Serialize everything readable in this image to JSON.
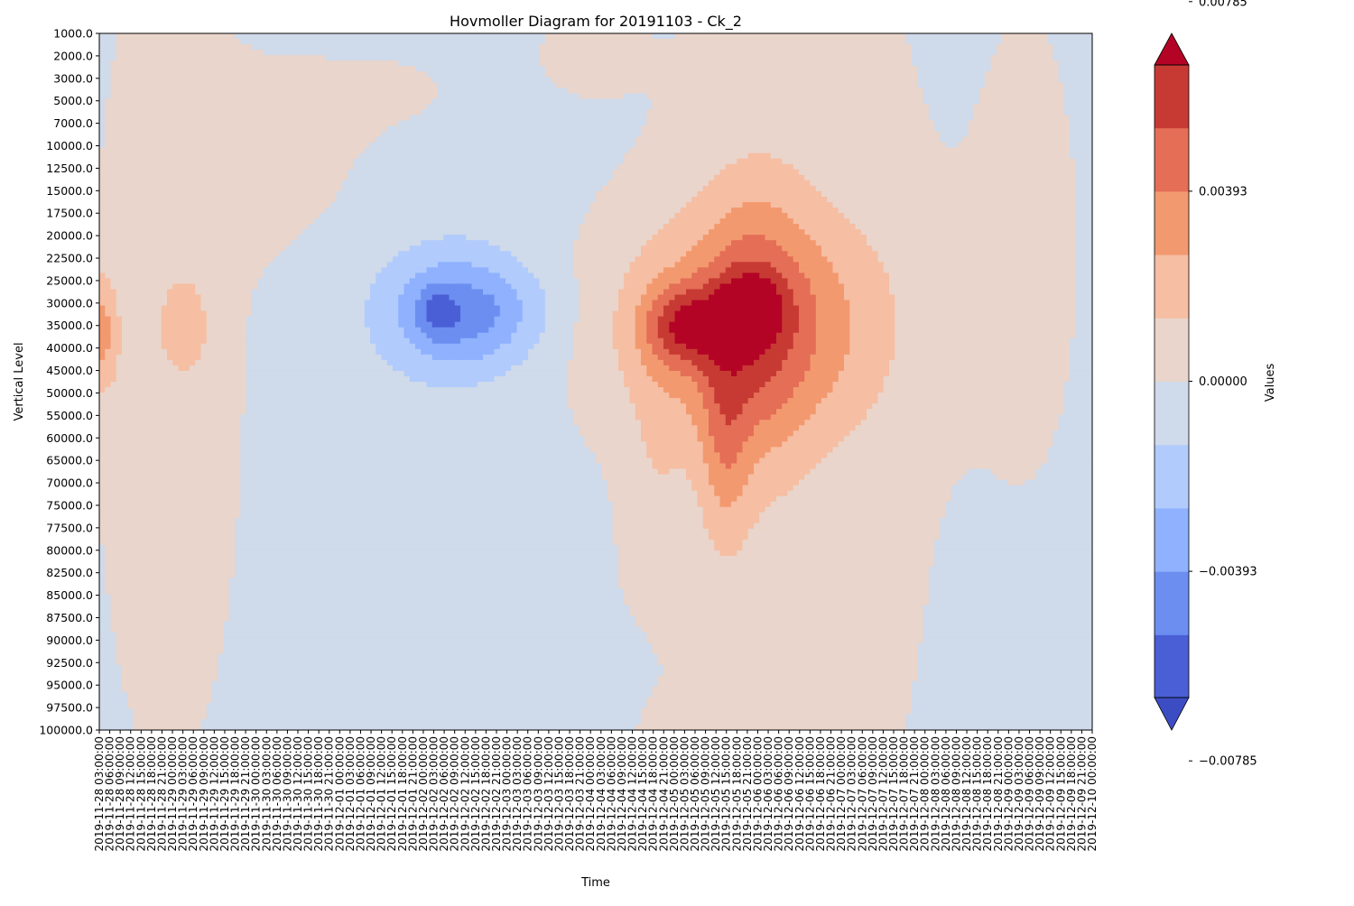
{
  "chart_data": {
    "type": "heatmap",
    "subtype": "filled-contour",
    "title": "Hovmoller Diagram for 20191103 - Ck_2",
    "xlabel": "Time",
    "ylabel": "Vertical Level",
    "y_inverted": true,
    "x_ticks": [
      "2019-11-28 03:00:00",
      "2019-11-28 06:00:00",
      "2019-11-28 09:00:00",
      "2019-11-28 12:00:00",
      "2019-11-28 15:00:00",
      "2019-11-28 18:00:00",
      "2019-11-28 21:00:00",
      "2019-11-29 00:00:00",
      "2019-11-29 03:00:00",
      "2019-11-29 06:00:00",
      "2019-11-29 09:00:00",
      "2019-11-29 12:00:00",
      "2019-11-29 15:00:00",
      "2019-11-29 18:00:00",
      "2019-11-29 21:00:00",
      "2019-11-30 00:00:00",
      "2019-11-30 03:00:00",
      "2019-11-30 06:00:00",
      "2019-11-30 09:00:00",
      "2019-11-30 12:00:00",
      "2019-11-30 15:00:00",
      "2019-11-30 18:00:00",
      "2019-11-30 21:00:00",
      "2019-12-01 00:00:00",
      "2019-12-01 03:00:00",
      "2019-12-01 06:00:00",
      "2019-12-01 09:00:00",
      "2019-12-01 12:00:00",
      "2019-12-01 15:00:00",
      "2019-12-01 18:00:00",
      "2019-12-01 21:00:00",
      "2019-12-02 00:00:00",
      "2019-12-02 03:00:00",
      "2019-12-02 06:00:00",
      "2019-12-02 09:00:00",
      "2019-12-02 12:00:00",
      "2019-12-02 15:00:00",
      "2019-12-02 18:00:00",
      "2019-12-02 21:00:00",
      "2019-12-03 00:00:00",
      "2019-12-03 03:00:00",
      "2019-12-03 06:00:00",
      "2019-12-03 09:00:00",
      "2019-12-03 12:00:00",
      "2019-12-03 15:00:00",
      "2019-12-03 18:00:00",
      "2019-12-03 21:00:00",
      "2019-12-04 00:00:00",
      "2019-12-04 03:00:00",
      "2019-12-04 06:00:00",
      "2019-12-04 09:00:00",
      "2019-12-04 12:00:00",
      "2019-12-04 15:00:00",
      "2019-12-04 18:00:00",
      "2019-12-04 21:00:00",
      "2019-12-05 00:00:00",
      "2019-12-05 03:00:00",
      "2019-12-05 06:00:00",
      "2019-12-05 09:00:00",
      "2019-12-05 12:00:00",
      "2019-12-05 15:00:00",
      "2019-12-05 18:00:00",
      "2019-12-05 21:00:00",
      "2019-12-06 00:00:00",
      "2019-12-06 03:00:00",
      "2019-12-06 06:00:00",
      "2019-12-06 09:00:00",
      "2019-12-06 12:00:00",
      "2019-12-06 15:00:00",
      "2019-12-06 18:00:00",
      "2019-12-06 21:00:00",
      "2019-12-07 00:00:00",
      "2019-12-07 03:00:00",
      "2019-12-07 06:00:00",
      "2019-12-07 09:00:00",
      "2019-12-07 12:00:00",
      "2019-12-07 15:00:00",
      "2019-12-07 18:00:00",
      "2019-12-07 21:00:00",
      "2019-12-08 00:00:00",
      "2019-12-08 03:00:00",
      "2019-12-08 06:00:00",
      "2019-12-08 09:00:00",
      "2019-12-08 12:00:00",
      "2019-12-08 15:00:00",
      "2019-12-08 18:00:00",
      "2019-12-08 21:00:00",
      "2019-12-09 00:00:00",
      "2019-12-09 03:00:00",
      "2019-12-09 06:00:00",
      "2019-12-09 09:00:00",
      "2019-12-09 12:00:00",
      "2019-12-09 15:00:00",
      "2019-12-09 18:00:00",
      "2019-12-09 21:00:00",
      "2019-12-10 00:00:00"
    ],
    "y_ticks": [
      "1000.0",
      "2000.0",
      "3000.0",
      "5000.0",
      "7000.0",
      "10000.0",
      "12500.0",
      "15000.0",
      "17500.0",
      "20000.0",
      "22500.0",
      "25000.0",
      "30000.0",
      "35000.0",
      "40000.0",
      "45000.0",
      "50000.0",
      "55000.0",
      "60000.0",
      "65000.0",
      "70000.0",
      "75000.0",
      "77500.0",
      "80000.0",
      "82500.0",
      "85000.0",
      "87500.0",
      "90000.0",
      "92500.0",
      "95000.0",
      "97500.0",
      "100000.0"
    ],
    "levels": [
      -0.01178,
      -0.01047,
      -0.00916,
      -0.00785,
      -0.00654,
      -0.00524,
      -0.00393,
      -0.00262,
      -0.00131,
      0.0,
      0.00131,
      0.00262,
      0.00393,
      0.00524,
      0.00654,
      0.00785,
      0.00916,
      0.01047,
      0.01178
    ],
    "extend": "both",
    "colormap": "coolwarm",
    "level_colors": [
      "#4a5fd5",
      "#6b8ef0",
      "#8fb1fe",
      "#b1cbfc",
      "#cfdaea",
      "#e9d5cb",
      "#f6bea3",
      "#f3996f",
      "#e46e56",
      "#c73a33"
    ],
    "extend_colors": {
      "below": "#3c4dc3",
      "above": "#b40426"
    },
    "colorbar": {
      "label": "Values",
      "ticks": [
        -0.00785,
        -0.00393,
        0.0,
        0.00393,
        0.00785
      ],
      "tick_labels": [
        "−0.00785",
        "−0.00393",
        "0.00000",
        "0.00393",
        "0.00785"
      ]
    },
    "features": [
      {
        "kind": "minimum",
        "time": "2019-12-02 03:00:00",
        "level": 32000,
        "value": -0.0062
      },
      {
        "kind": "maximum",
        "time": "2019-12-05 03:00:00",
        "level": 33000,
        "value": 0.008
      },
      {
        "kind": "maximum",
        "time": "2019-12-05 21:00:00",
        "level": 31000,
        "value": 0.008
      }
    ]
  }
}
